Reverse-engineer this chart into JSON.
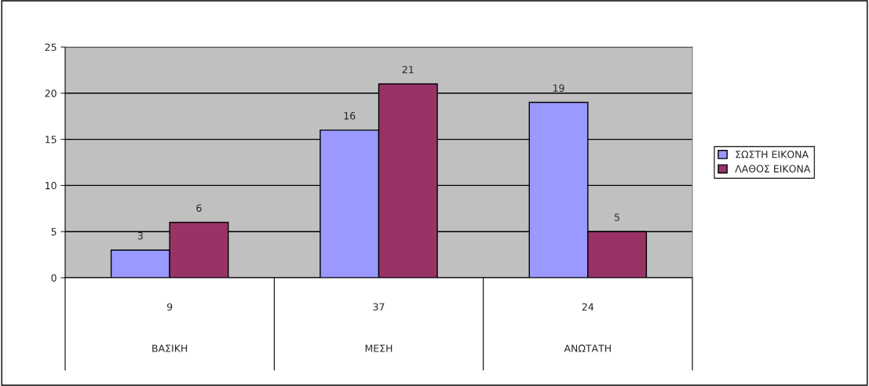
{
  "chart_data": {
    "type": "bar",
    "categories": [
      "ΒΑΣΙΚΗ",
      "ΜΕΣΗ",
      "ΑΝΩΤΑΤΗ"
    ],
    "totals": [
      "9",
      "37",
      "24"
    ],
    "series": [
      {
        "name": "ΣΩΣΤΗ ΕΙΚΟΝΑ",
        "color": "#9999ff",
        "values": [
          3,
          16,
          19
        ]
      },
      {
        "name": "ΛΑΘΟΣ ΕΙΚΟΝΑ",
        "color": "#993366",
        "values": [
          6,
          21,
          5
        ]
      }
    ],
    "ylim": [
      0,
      25
    ],
    "yticks": [
      0,
      5,
      10,
      15,
      20,
      25
    ],
    "grid": "y",
    "legend": "right",
    "data_labels": true
  }
}
